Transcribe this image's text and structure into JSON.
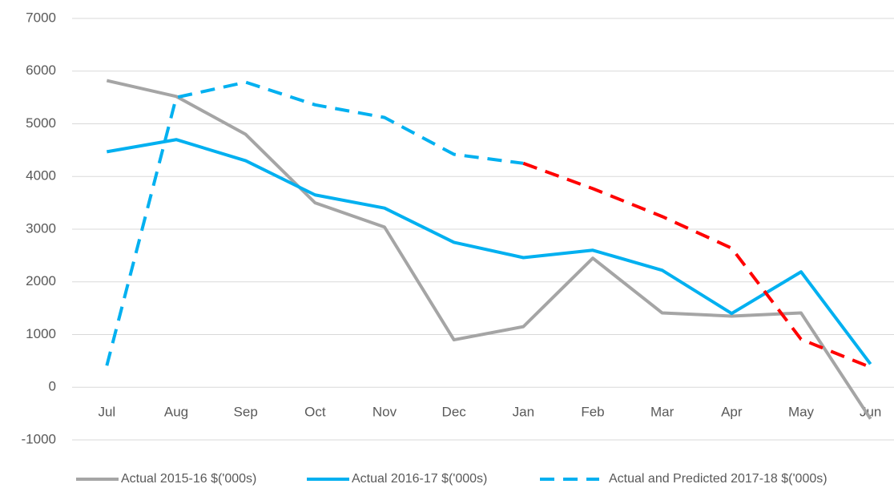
{
  "chart_data": {
    "type": "line",
    "categories": [
      "Jul",
      "Aug",
      "Sep",
      "Oct",
      "Nov",
      "Dec",
      "Jan",
      "Feb",
      "Mar",
      "Apr",
      "May",
      "Jun"
    ],
    "series": [
      {
        "name": "Actual 2015-16 $('000s)",
        "color": "#a5a5a5",
        "dashed": false,
        "values": [
          5820,
          5520,
          4800,
          3500,
          3040,
          900,
          1150,
          2450,
          1410,
          1350,
          1410,
          -600
        ]
      },
      {
        "name": "Actual 2016-17 $('000s)",
        "color": "#00b0f0",
        "dashed": false,
        "values": [
          4470,
          4700,
          4300,
          3650,
          3400,
          2750,
          2460,
          2600,
          2220,
          1400,
          2190,
          440
        ]
      },
      {
        "name": "Actual and Predicted 2017-18 $('000s)",
        "color": "#00b0f0",
        "dashed": true,
        "segment_colors": [
          "#00b0f0",
          "#00b0f0",
          "#00b0f0",
          "#00b0f0",
          "#00b0f0",
          "#00b0f0",
          "#ff0000",
          "#ff0000",
          "#ff0000",
          "#ff0000",
          "#ff0000"
        ],
        "values": [
          410,
          5500,
          5790,
          5360,
          5120,
          4420,
          4250,
          3770,
          3240,
          2640,
          910,
          380
        ]
      }
    ],
    "ylim": [
      -1000,
      7000
    ],
    "yticks": [
      -1000,
      0,
      1000,
      2000,
      3000,
      4000,
      5000,
      6000,
      7000
    ],
    "grid": true,
    "legend": "bottom"
  }
}
